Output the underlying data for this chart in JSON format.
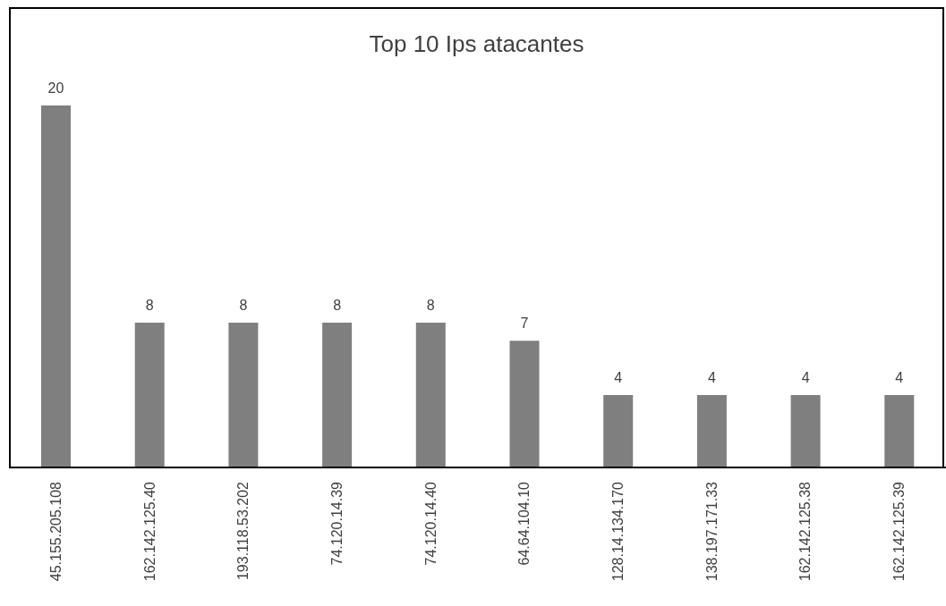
{
  "chart_data": {
    "type": "bar",
    "title": "Top 10 Ips atacantes",
    "categories": [
      "45.155.205.108",
      "162.142.125.40",
      "193.118.53.202",
      "74.120.14.39",
      "74.120.14.40",
      "64.64.104.10",
      "128.14.134.170",
      "138.197.171.33",
      "162.142.125.38",
      "162.142.125.39"
    ],
    "values": [
      20,
      8,
      8,
      8,
      8,
      7,
      4,
      4,
      4,
      4
    ],
    "color": "#7f7f7f",
    "data_labels": true,
    "grid": false,
    "legend": false
  }
}
